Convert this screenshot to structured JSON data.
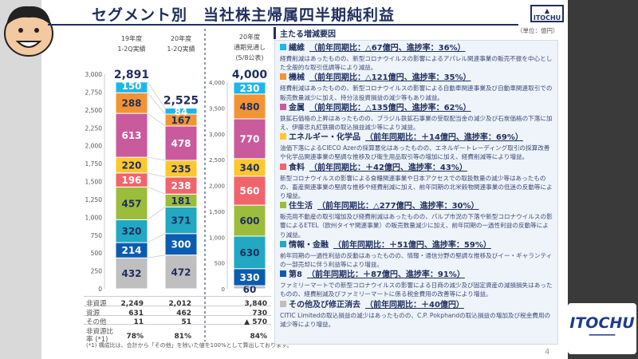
{
  "title": "セグメント別　当社株主帰属四半期純利益",
  "logo_text": "ITOCHU",
  "page_number": "4",
  "unit": "（単位：億円）",
  "chart_data": {
    "type": "bar",
    "stacked": true,
    "categories": [
      "19年度 1-2Q実績",
      "20年度 1-2Q実績",
      "20年度 通期見通し (5/8公表)"
    ],
    "category_lines": [
      [
        "19年度",
        "1-2Q実績"
      ],
      [
        "20年度",
        "1-2Q実績"
      ],
      [
        "20年度",
        "通期見通し",
        "(5/8公表)"
      ]
    ],
    "totals": [
      "2,891",
      "2,525",
      "4,000"
    ],
    "left_axis": {
      "ylim": [
        0,
        3000
      ],
      "ticks": [
        "0",
        "250",
        "500",
        "750",
        "1,000",
        "1,250",
        "1,500",
        "1,750",
        "2,000",
        "2,250",
        "2,500",
        "2,750",
        "3,000"
      ]
    },
    "right_axis": {
      "ylim": [
        0,
        4000
      ],
      "ticks": [
        "0",
        "500",
        "1,000",
        "1,500",
        "2,000",
        "2,500",
        "3,000",
        "3,500",
        "4,000"
      ]
    },
    "series": [
      {
        "name": "その他及び修正消去",
        "color": "#bfbfbf",
        "values": [
          432,
          472,
          60
        ]
      },
      {
        "name": "第8",
        "color": "#0b5cae",
        "values": [
          214,
          300,
          330
        ]
      },
      {
        "name": "情報・金融",
        "color": "#22a8c2",
        "values": [
          320,
          371,
          630
        ]
      },
      {
        "name": "住生活",
        "color": "#9cbc3c",
        "values": [
          457,
          181,
          600
        ]
      },
      {
        "name": "食料",
        "color": "#f0646c",
        "values": [
          196,
          238,
          560
        ]
      },
      {
        "name": "エネルギー・化学品",
        "color": "#fec72e",
        "values": [
          220,
          235,
          340
        ]
      },
      {
        "name": "金属",
        "color": "#c95a9c",
        "values": [
          613,
          478,
          770
        ]
      },
      {
        "name": "機械",
        "color": "#f39434",
        "values": [
          288,
          167,
          480
        ]
      },
      {
        "name": "繊維",
        "color": "#1eb6ea",
        "values": [
          150,
          84,
          230
        ]
      }
    ]
  },
  "table": {
    "rows": [
      {
        "label": "非資源",
        "values": [
          "2,249",
          "2,012",
          "3,840"
        ]
      },
      {
        "label": "資源",
        "values": [
          "631",
          "462",
          "730"
        ]
      },
      {
        "label": "その他",
        "values": [
          "11",
          "51",
          "▲ 570"
        ]
      },
      {
        "label": "非資源比率 (*1)",
        "values": [
          "78%",
          "81%",
          "84%"
        ]
      }
    ],
    "note": "(*1) 構成比は、合計から「その他」を除いた値を100%として算出しております。"
  },
  "factors": {
    "heading": "主たる増減要因",
    "items": [
      {
        "name": "繊維",
        "color": "#1eb6ea",
        "sub": "（前年同期比：△67億円、進捗率：36%）",
        "body": "経費削減はあったものの、新型コロナウイルスの影響によるアパレル関連事業の販売不振を中心とした全般的な取引低調等により減益。"
      },
      {
        "name": "機械",
        "color": "#f39434",
        "sub": "（前年同期比：△121億円、進捗率：35%）",
        "body": "経費削減はあったものの、新型コロナウイルスの影響による自動車関連事業及び自動車関連取引での販売数量減少に加え、持分法投資損益の減少等もあり減益。"
      },
      {
        "name": "金属",
        "color": "#c95a9c",
        "sub": "（前年同期比：△135億円、進捗率：62%）",
        "body": "鉄鉱石価格の上昇はあったものの、ブラジル鉄鉱石事業の受取配当金の減少及び石炭価格の下落に加え、伊藤忠丸紅鉄鋼の取込損益減少等により減益。"
      },
      {
        "name": "エネルギー・化学品",
        "color": "#fec72e",
        "sub": "（前年同期比：＋14億円、進捗率：69%）",
        "body": "油価下落によるCIECO Azerの採算悪化はあったものの、エネルギートレーディング取引の採算改善や化学品関連事業の堅調な推移及び衛生用品取引等の増加に加え、経費削減等により増益。"
      },
      {
        "name": "食料",
        "color": "#f0646c",
        "sub": "（前年同期比：＋42億円、進捗率：43%）",
        "body": "新型コロナウイルスの影響による食糧関連事業や日本アクセスでの取扱数量の減少等はあったものの、畜産関連事業の堅調な推移や経費削減に加え、前年同期の北米穀物関連事業の低迷の反動等により増益。"
      },
      {
        "name": "住生活",
        "color": "#9cbc3c",
        "sub": "（前年同期比：△277億円、進捗率：30%）",
        "body": "販売用不動産の取引増加及び経費削減はあったものの、パルプ市況の下落や新型コロナウイルスの影響によるETEL（欧州タイヤ関連事業）の販売数量減少に加え、前年同期の一過性利益の反動等により減益。"
      },
      {
        "name": "情報・金融",
        "color": "#22a8c2",
        "sub": "（前年同期比：＋51億円、進捗率：59%）",
        "body": "前年同期の一過性利益の反動はあったものの、情報・通信分野の堅調な推移及びイー・ギャランティの一部売却に伴う利益等により増益。"
      },
      {
        "name": "第8",
        "color": "#0b5cae",
        "sub": "（前年同期比：＋87億円、進捗率：91%）",
        "body": "ファミリーマートでの新型コロナウイルスの影響による日商の減少及び固定資産の減損損失はあったものの、経費削減及びファミリーマートに係る税金費用の改善等により増益。"
      },
      {
        "name": "その他及び修正消去",
        "color": "#bfbfbf",
        "sub": "（前年同期比：＋40億円）",
        "body": "CITIC Limitedの取込損益の減少はあったものの、C.P. Pokphandの取込損益の増加及び税金費用の減少等により増益。"
      }
    ]
  }
}
